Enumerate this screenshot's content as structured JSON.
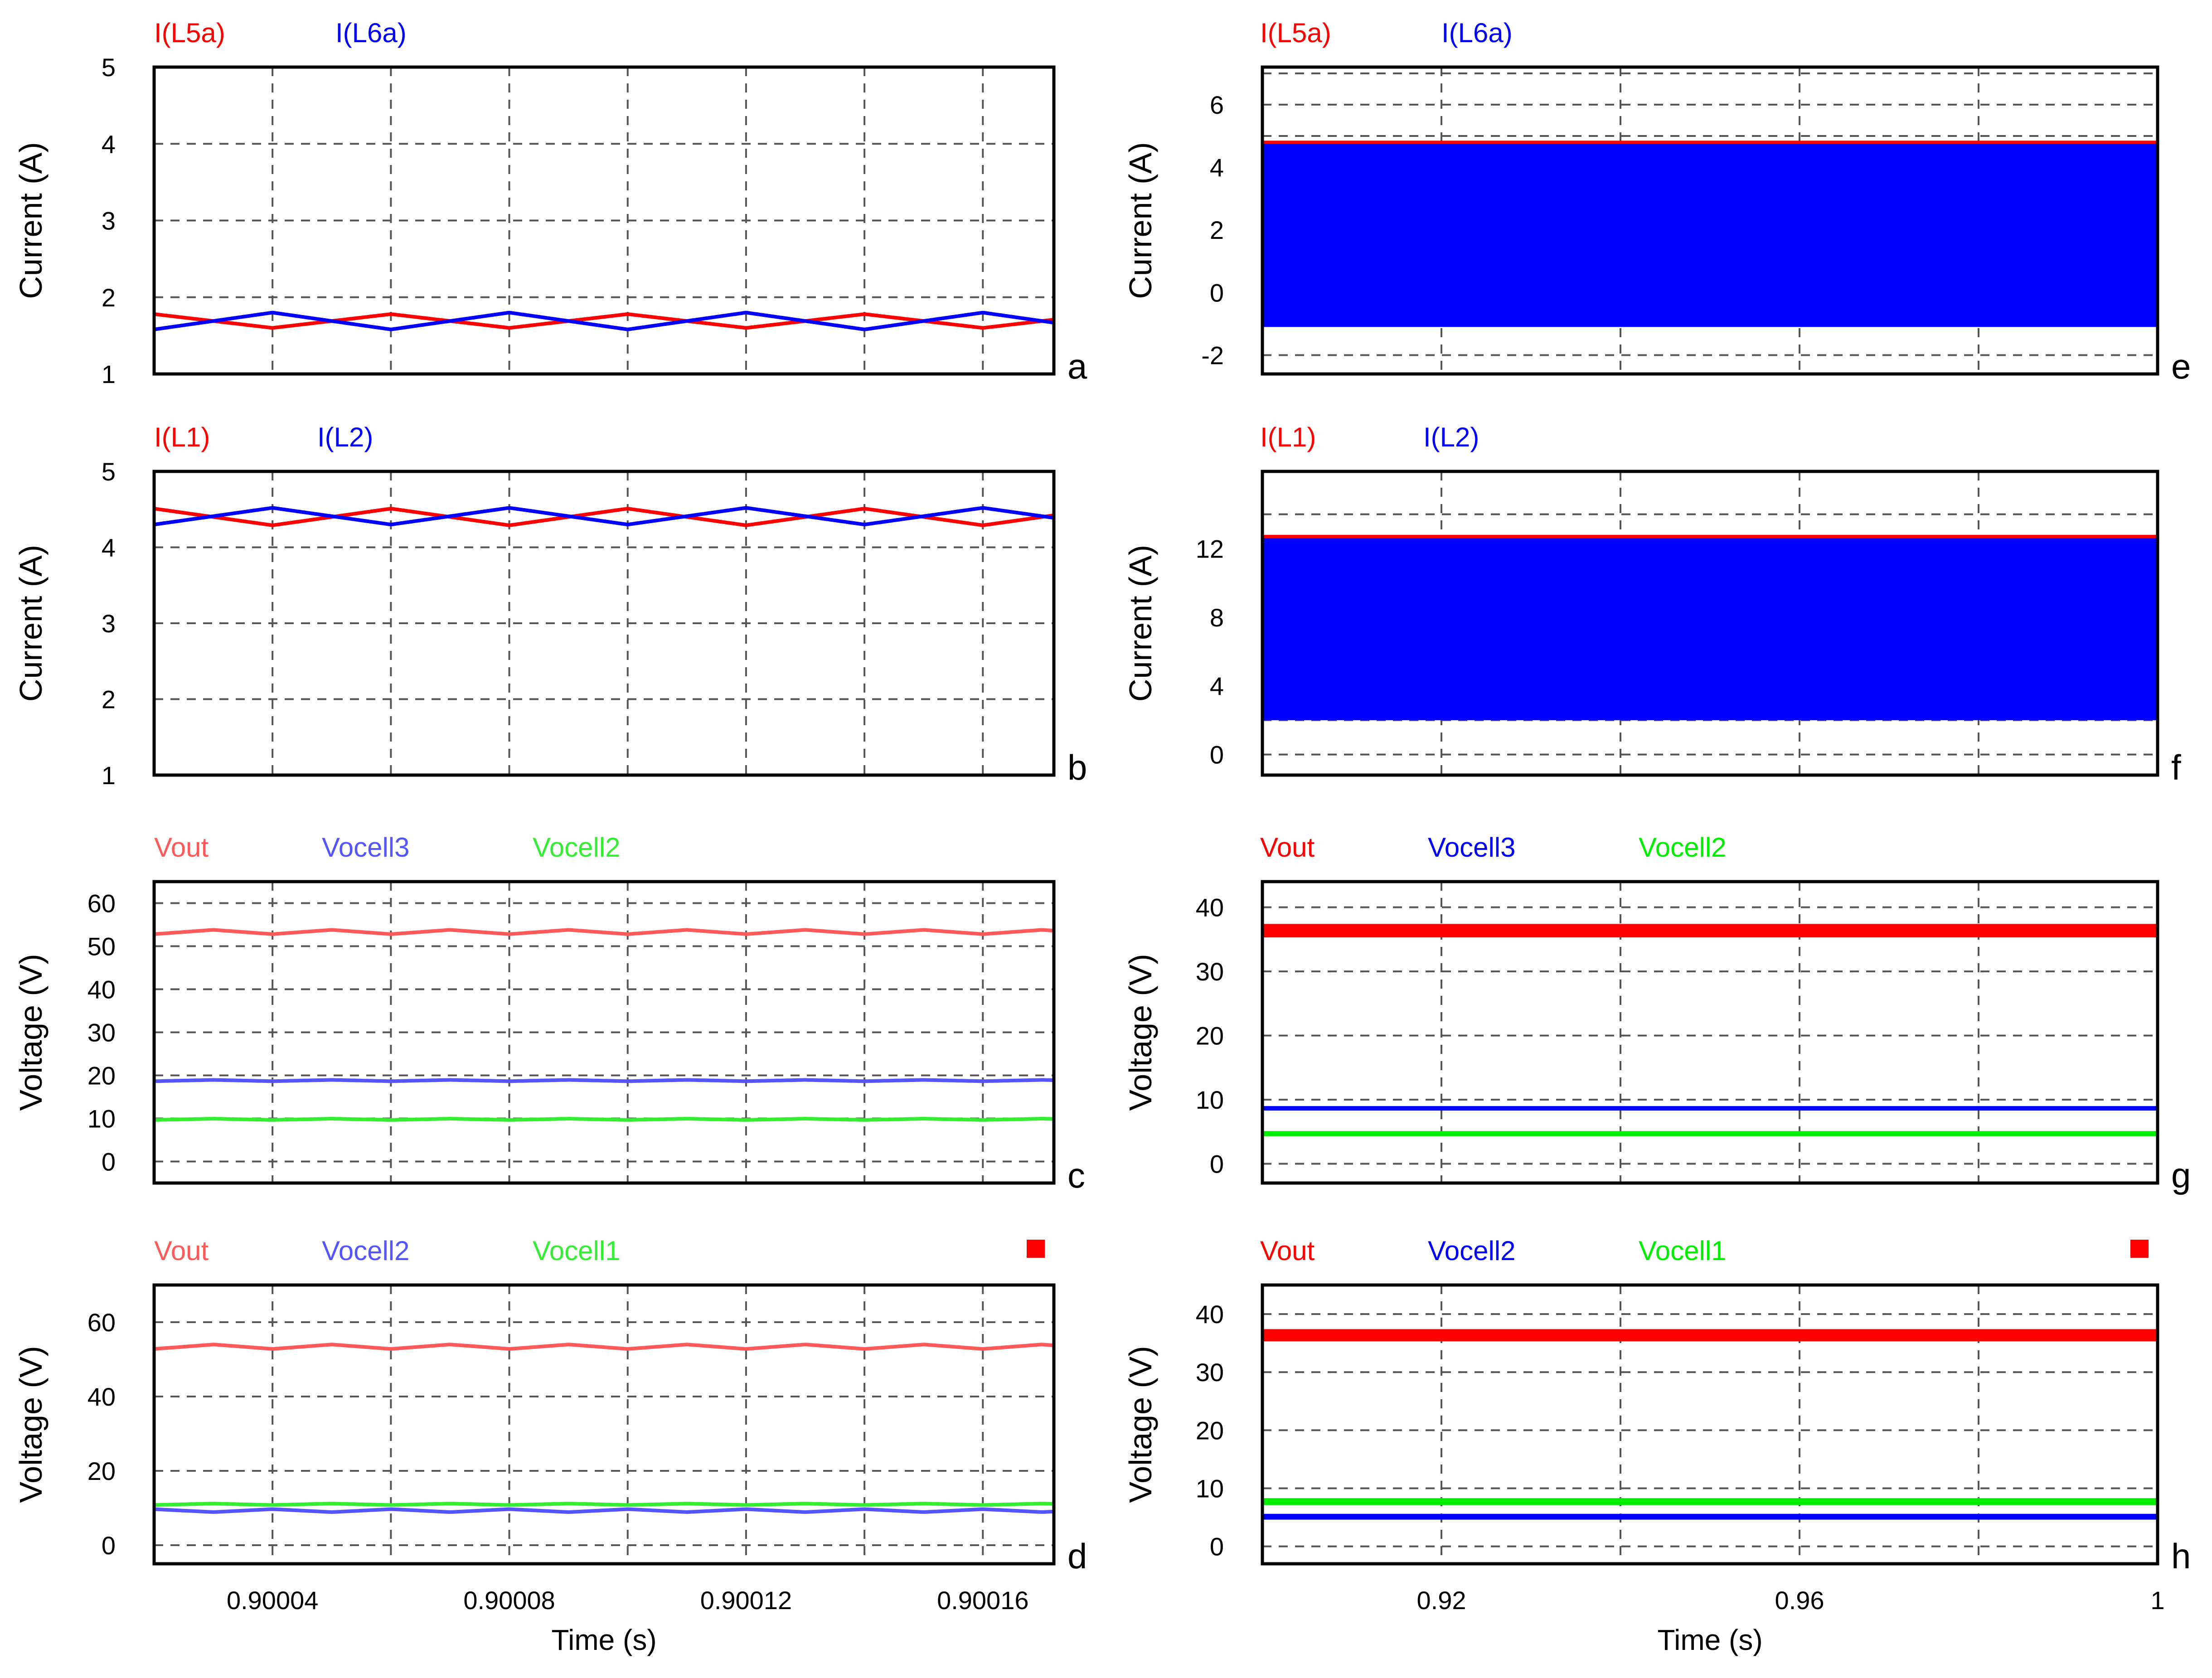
{
  "figure": {
    "x_axis_left": {
      "label": "Time (s)",
      "ticks": [
        "0.90004",
        "0.90008",
        "0.90012",
        "0.90016"
      ]
    },
    "x_axis_right": {
      "label": "Time (s)",
      "ticks": [
        "0.92",
        "0.96",
        "1"
      ]
    },
    "colors": {
      "red": "#ff0000",
      "blue": "#0000ff",
      "green": "#00ee00",
      "light_red": "#ff5a5a",
      "light_blue": "#5555ff",
      "light_green": "#33ee33"
    }
  },
  "chart_data": [
    {
      "id": "a",
      "type": "line",
      "letter": "a",
      "ylabel": "Current (A)",
      "ylim": [
        1,
        5
      ],
      "yticks": [
        "1",
        "2",
        "3",
        "4",
        "5"
      ],
      "grid": true,
      "xlim": [
        0.90002,
        0.900172
      ],
      "series": [
        {
          "name": "I(L5a)",
          "color": "#ff0000",
          "kind": "wave",
          "mean": 1.69,
          "amp": 0.09,
          "period": 4e-05,
          "phase": 0.5
        },
        {
          "name": "I(L6a)",
          "color": "#0000ff",
          "kind": "wave",
          "mean": 1.69,
          "amp": 0.11,
          "period": 4e-05,
          "phase": 0.0
        }
      ]
    },
    {
      "id": "b",
      "type": "line",
      "letter": "b",
      "ylabel": "Current (A)",
      "ylim": [
        1,
        5
      ],
      "yticks": [
        "1",
        "2",
        "3",
        "4",
        "5"
      ],
      "grid": true,
      "xlim": [
        0.90002,
        0.900172
      ],
      "series": [
        {
          "name": "I(L1)",
          "color": "#ff0000",
          "kind": "wave",
          "mean": 4.4,
          "amp": 0.11,
          "period": 4e-05,
          "phase": 0.5
        },
        {
          "name": "I(L2)",
          "color": "#0000ff",
          "kind": "wave",
          "mean": 4.41,
          "amp": 0.11,
          "period": 4e-05,
          "phase": 0.0
        }
      ]
    },
    {
      "id": "c",
      "type": "line",
      "letter": "c",
      "ylabel": "Voltage (V)",
      "ylim": [
        -5,
        65
      ],
      "yticks": [
        "0",
        "10",
        "20",
        "30",
        "40",
        "50",
        "60"
      ],
      "ytick_values": [
        0,
        10,
        20,
        30,
        40,
        50,
        60
      ],
      "grid": true,
      "xlim": [
        0.90002,
        0.900172
      ],
      "series": [
        {
          "name": "Vout",
          "color": "#ff5a5a",
          "kind": "wave",
          "mean": 53.3,
          "amp": 0.5,
          "period": 2e-05,
          "phase": 0.0
        },
        {
          "name": "Vocell3",
          "color": "#5555ff",
          "kind": "wave",
          "mean": 18.8,
          "amp": 0.15,
          "period": 2e-05,
          "phase": 0.0
        },
        {
          "name": "Vocell2",
          "color": "#33ee33",
          "kind": "wave",
          "mean": 9.8,
          "amp": 0.15,
          "period": 2e-05,
          "phase": 0.0
        }
      ]
    },
    {
      "id": "d",
      "type": "line",
      "letter": "d",
      "ylabel": "Voltage (V)",
      "ylim": [
        -5,
        70
      ],
      "yticks": [
        "0",
        "20",
        "40",
        "60"
      ],
      "ytick_values": [
        0,
        20,
        40,
        60
      ],
      "grid": true,
      "xlim": [
        0.90002,
        0.900172
      ],
      "series": [
        {
          "name": "Vout",
          "color": "#ff5a5a",
          "kind": "wave",
          "mean": 53.4,
          "amp": 0.6,
          "period": 2e-05,
          "phase": 0.0
        },
        {
          "name": "Vocell2",
          "color": "#5555ff",
          "kind": "wave",
          "mean": 9.3,
          "amp": 0.4,
          "period": 2e-05,
          "phase": 0.5
        },
        {
          "name": "Vocell1",
          "color": "#33ee33",
          "kind": "wave",
          "mean": 11.0,
          "amp": 0.2,
          "period": 2e-05,
          "phase": 0.0
        }
      ]
    },
    {
      "id": "e",
      "type": "area",
      "letter": "e",
      "ylabel": "Current (A)",
      "ylim": [
        -2.6,
        7.2
      ],
      "yticks": [
        "-2",
        "0",
        "2",
        "4",
        "6"
      ],
      "ytick_values": [
        -2,
        0,
        2,
        4,
        6
      ],
      "grid": true,
      "xlim": [
        0.9,
        1.0
      ],
      "series": [
        {
          "name": "I(L5a)",
          "color": "#ff0000",
          "kind": "band",
          "low": 4.7,
          "high": 4.85
        },
        {
          "name": "I(L6a)",
          "color": "#0000ff",
          "kind": "band",
          "low": -1.1,
          "high": 4.75
        }
      ]
    },
    {
      "id": "f",
      "type": "area",
      "letter": "f",
      "ylabel": "Current (A)",
      "ylim": [
        -1.2,
        16.5
      ],
      "yticks": [
        "0",
        "4",
        "8",
        "12"
      ],
      "ytick_values": [
        0,
        4,
        8,
        12
      ],
      "grid": true,
      "xlim": [
        0.9,
        1.0
      ],
      "series": [
        {
          "name": "I(L1)",
          "color": "#ff0000",
          "kind": "band",
          "low": 12.55,
          "high": 12.8
        },
        {
          "name": "I(L2)",
          "color": "#0000ff",
          "kind": "band",
          "low": 2.0,
          "high": 12.6
        }
      ]
    },
    {
      "id": "g",
      "type": "line",
      "letter": "g",
      "ylabel": "Voltage (V)",
      "ylim": [
        -3,
        44
      ],
      "yticks": [
        "0",
        "10",
        "20",
        "30",
        "40"
      ],
      "ytick_values": [
        0,
        10,
        20,
        30,
        40
      ],
      "grid": true,
      "xlim": [
        0.9,
        1.0
      ],
      "series": [
        {
          "name": "Vout",
          "color": "#ff0000",
          "kind": "band",
          "low": 35.3,
          "high": 37.4
        },
        {
          "name": "Vocell3",
          "color": "#0000ff",
          "kind": "band",
          "low": 8.3,
          "high": 9.0
        },
        {
          "name": "Vocell2",
          "color": "#00ee00",
          "kind": "band",
          "low": 4.3,
          "high": 5.1
        }
      ]
    },
    {
      "id": "h",
      "type": "line",
      "letter": "h",
      "ylabel": "Voltage (V)",
      "ylim": [
        -3,
        45
      ],
      "yticks": [
        "0",
        "10",
        "20",
        "30",
        "40"
      ],
      "ytick_values": [
        0,
        10,
        20,
        30,
        40
      ],
      "grid": true,
      "xlim": [
        0.9,
        1.0
      ],
      "series": [
        {
          "name": "Vout",
          "color": "#ff0000",
          "kind": "band",
          "low": 35.3,
          "high": 37.4
        },
        {
          "name": "Vocell2",
          "color": "#0000ff",
          "kind": "band",
          "low": 4.6,
          "high": 5.6
        },
        {
          "name": "Vocell1",
          "color": "#00ee00",
          "kind": "band",
          "low": 7.1,
          "high": 8.3
        }
      ]
    }
  ]
}
